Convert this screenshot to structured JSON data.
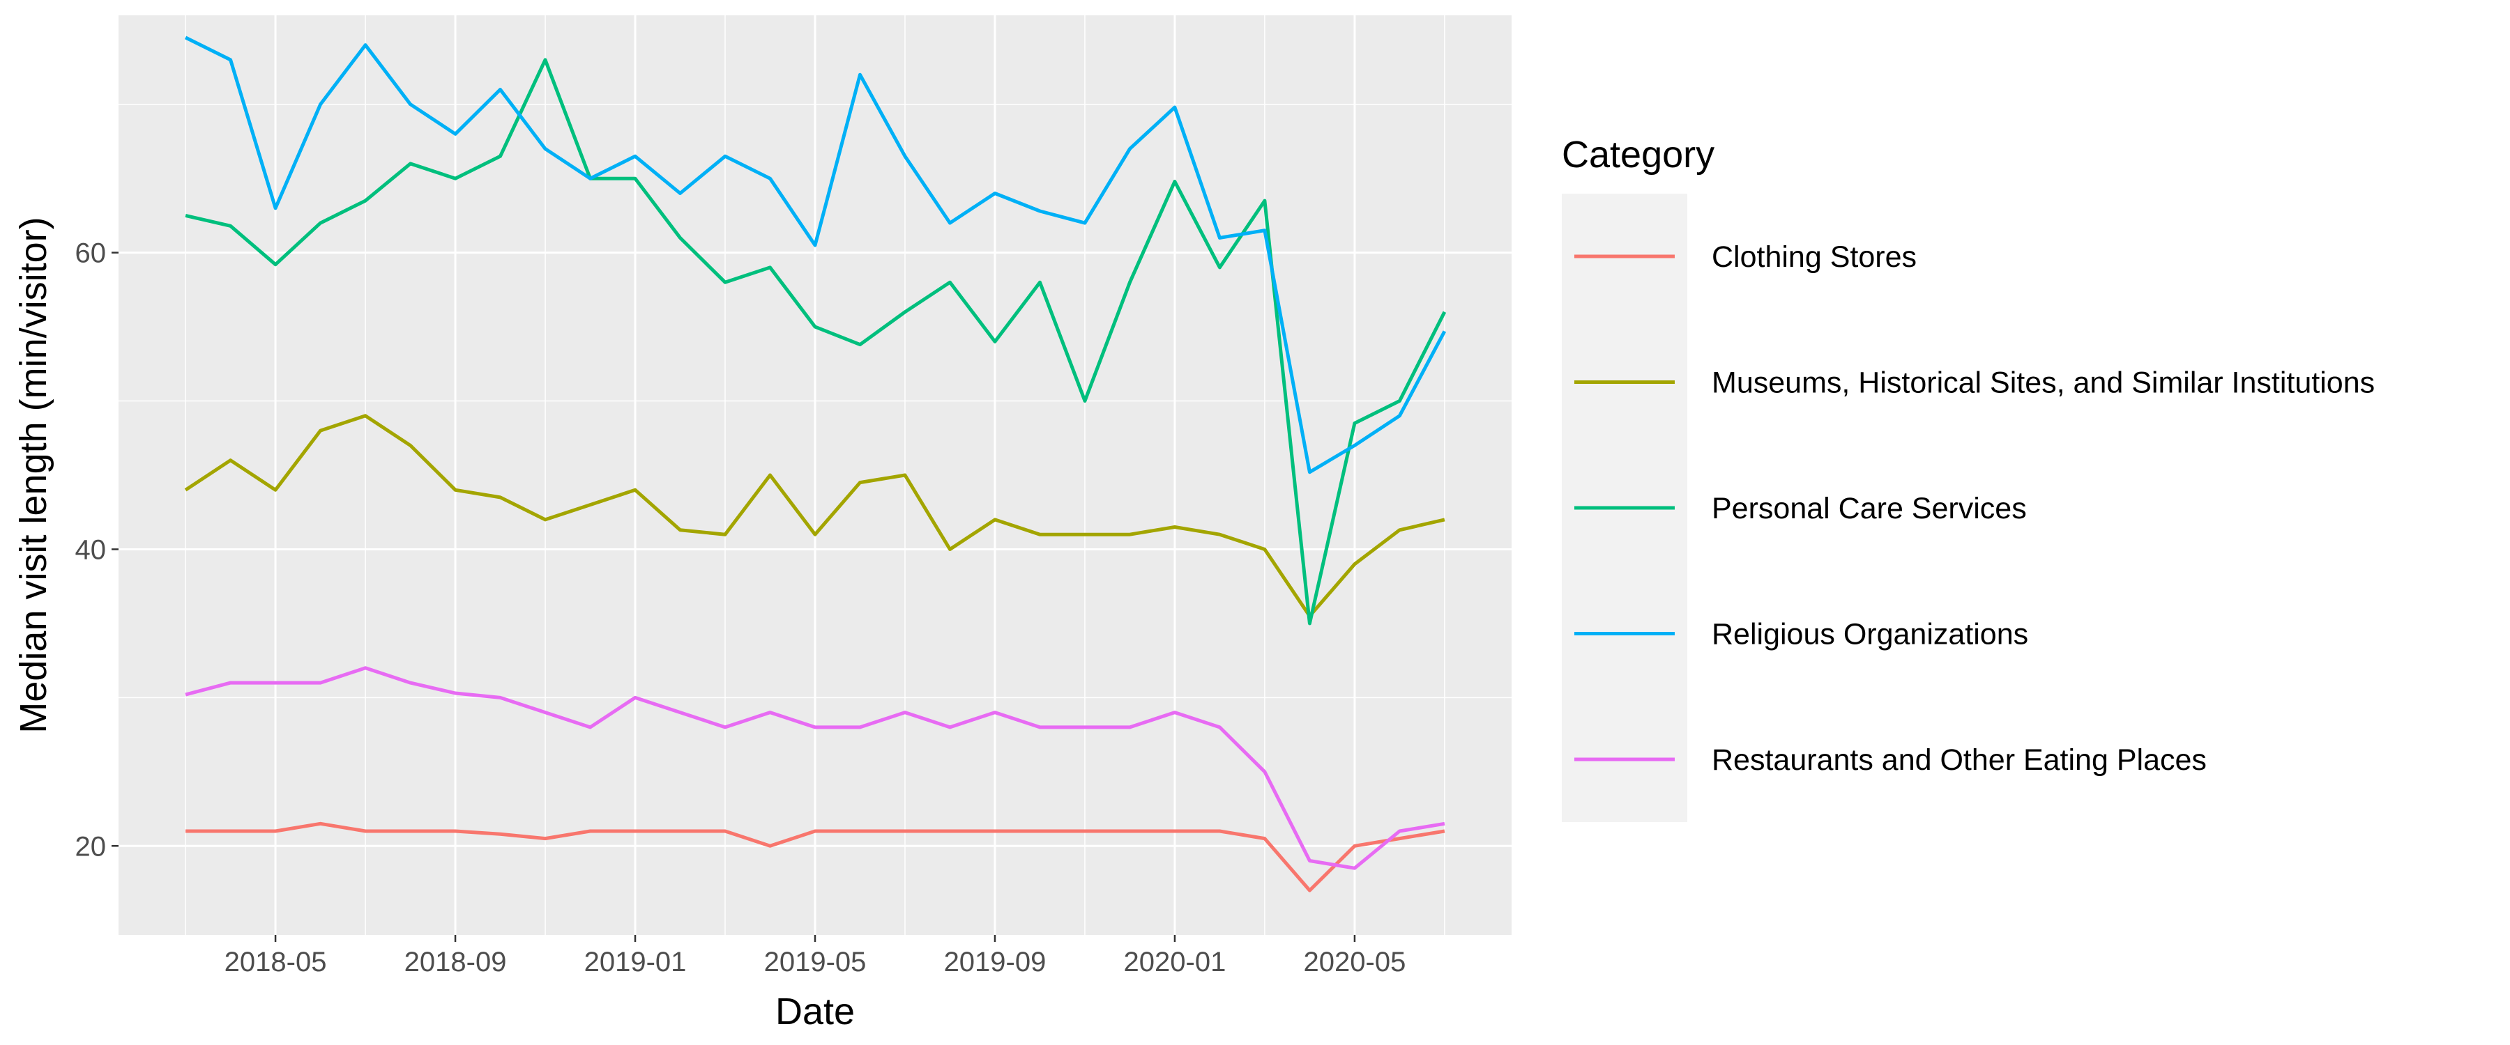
{
  "chart_data": {
    "type": "line",
    "xlabel": "Date",
    "ylabel": "Median visit length (min/visitor)",
    "x_ticks": [
      "2018-05",
      "2018-09",
      "2019-01",
      "2019-05",
      "2019-09",
      "2020-01",
      "2020-05"
    ],
    "y_ticks": [
      20,
      40,
      60
    ],
    "ylim": [
      14,
      76
    ],
    "grid": true,
    "legend": {
      "title": "Category",
      "position": "right"
    },
    "x": [
      "2018-03",
      "2018-04",
      "2018-05",
      "2018-06",
      "2018-07",
      "2018-08",
      "2018-09",
      "2018-10",
      "2018-11",
      "2018-12",
      "2019-01",
      "2019-02",
      "2019-03",
      "2019-04",
      "2019-05",
      "2019-06",
      "2019-07",
      "2019-08",
      "2019-09",
      "2019-10",
      "2019-11",
      "2019-12",
      "2020-01",
      "2020-02",
      "2020-03",
      "2020-04",
      "2020-05",
      "2020-06",
      "2020-07"
    ],
    "series": [
      {
        "name": "Clothing Stores",
        "color": "#F8766D",
        "values": [
          21,
          21,
          21,
          21.5,
          21,
          21,
          21,
          20.8,
          20.5,
          21,
          21,
          21,
          21,
          20,
          21,
          21,
          21,
          21,
          21,
          21,
          21,
          21,
          21,
          21,
          20.5,
          17,
          20,
          20.5,
          21
        ]
      },
      {
        "name": "Museums, Historical Sites, and Similar Institutions",
        "color": "#A3A500",
        "values": [
          44,
          46,
          44,
          48,
          49,
          47,
          44,
          43.5,
          42,
          43,
          44,
          41.3,
          41,
          45,
          41,
          44.5,
          45,
          40,
          42,
          41,
          41,
          41,
          41.5,
          41,
          40,
          35.5,
          39,
          41.3,
          42
        ]
      },
      {
        "name": "Personal Care Services",
        "color": "#00BF7D",
        "values": [
          62.5,
          61.8,
          59.2,
          62,
          63.5,
          66,
          65,
          66.5,
          73,
          65,
          65,
          61,
          58,
          59,
          55,
          53.8,
          56,
          58,
          54,
          58,
          50,
          58,
          64.8,
          59,
          63.5,
          35,
          48.5,
          50,
          56
        ]
      },
      {
        "name": "Religious Organizations",
        "color": "#00B0F6",
        "values": [
          74.5,
          73,
          63,
          70,
          74,
          70,
          68,
          71,
          67,
          65,
          66.5,
          64,
          66.5,
          65,
          60.5,
          72,
          66.5,
          62,
          64,
          62.8,
          62,
          67,
          69.8,
          61,
          61.5,
          45.2,
          47,
          49,
          54.7
        ]
      },
      {
        "name": "Restaurants and Other Eating Places",
        "color": "#E76BF3",
        "values": [
          30.2,
          31,
          31,
          31,
          32,
          31,
          30.3,
          30,
          29,
          28,
          30,
          29,
          28,
          29,
          28,
          28,
          29,
          28,
          29,
          28,
          28,
          28,
          29,
          28,
          25,
          19,
          18.5,
          21,
          21.5
        ]
      }
    ]
  }
}
